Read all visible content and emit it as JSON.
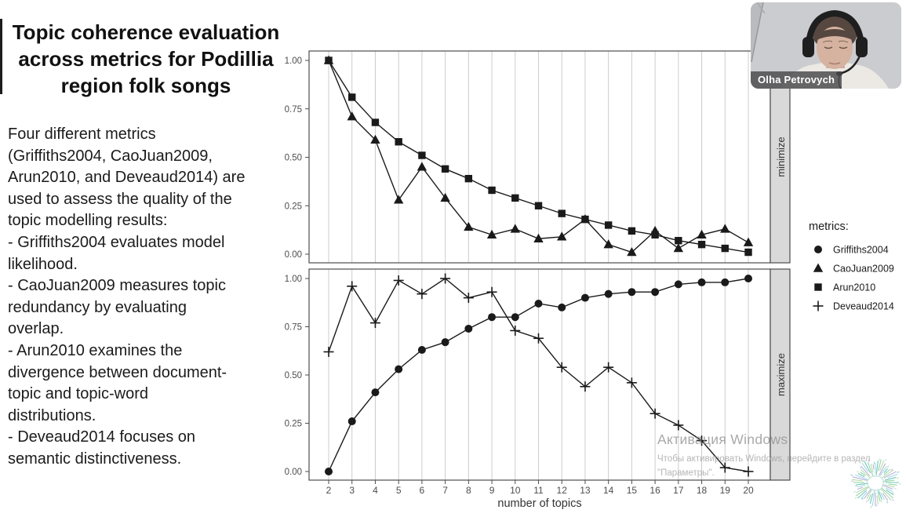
{
  "slide": {
    "title": "Topic coherence evaluation\nacross metrics for Podillia\nregion folk songs",
    "body": "Four different metrics\n(Griffiths2004, CaoJuan2009,\nArun2010, and Deveaud2014) are\nused to assess the quality of the\ntopic modelling results:\n- Griffiths2004 evaluates model\nlikelihood.\n- CaoJuan2009 measures topic\nredundancy by evaluating\noverlap.\n- Arun2010 examines the\ndivergence between document-\ntopic and topic-word\ndistributions.\n- Deveaud2014 focuses on\nsemantic distinctiveness."
  },
  "webcam": {
    "participant_name": "Olha Petrovych"
  },
  "watermark": {
    "line1": "Активация Windows",
    "line2": "Чтобы активировать Windows, перейдите в раздел",
    "line3": "\"Параметры\"."
  },
  "chart_data": {
    "type": "line",
    "x_label": "number of topics",
    "x": [
      2,
      3,
      4,
      5,
      6,
      7,
      8,
      9,
      10,
      11,
      12,
      13,
      14,
      15,
      16,
      17,
      18,
      19,
      20
    ],
    "ylim": [
      0,
      1
    ],
    "yticks": [
      1,
      0.75,
      0.5,
      0.25,
      0
    ],
    "ytick_labels": [
      "1.00",
      "0.75",
      "0.50",
      "0.25",
      "0.00"
    ],
    "grid": "vertical-only",
    "legend": {
      "title": "metrics:",
      "position": "right",
      "items": [
        {
          "label": "Griffiths2004",
          "marker": "circle"
        },
        {
          "label": "CaoJuan2009",
          "marker": "triangle"
        },
        {
          "label": "Arun2010",
          "marker": "square"
        },
        {
          "label": "Deveaud2014",
          "marker": "plus"
        }
      ]
    },
    "panels": [
      {
        "label": "minimize",
        "series": [
          {
            "name": "CaoJuan2009",
            "marker": "triangle",
            "values": [
              1.0,
              0.71,
              0.59,
              0.28,
              0.45,
              0.29,
              0.14,
              0.1,
              0.13,
              0.08,
              0.09,
              0.18,
              0.05,
              0.01,
              0.12,
              0.03,
              0.1,
              0.13,
              0.06
            ]
          },
          {
            "name": "Arun2010",
            "marker": "square",
            "values": [
              1.0,
              0.81,
              0.68,
              0.58,
              0.51,
              0.44,
              0.39,
              0.33,
              0.29,
              0.25,
              0.21,
              0.18,
              0.15,
              0.12,
              0.1,
              0.07,
              0.05,
              0.03,
              0.01
            ]
          }
        ]
      },
      {
        "label": "maximize",
        "series": [
          {
            "name": "Griffiths2004",
            "marker": "circle",
            "values": [
              0.0,
              0.26,
              0.41,
              0.53,
              0.63,
              0.67,
              0.74,
              0.8,
              0.8,
              0.87,
              0.85,
              0.9,
              0.92,
              0.93,
              0.93,
              0.97,
              0.98,
              0.98,
              1.0
            ]
          },
          {
            "name": "Deveaud2014",
            "marker": "plus",
            "values": [
              0.62,
              0.96,
              0.77,
              0.99,
              0.92,
              1.0,
              0.9,
              0.93,
              0.73,
              0.69,
              0.54,
              0.44,
              0.54,
              0.46,
              0.3,
              0.24,
              0.16,
              0.02,
              0.0
            ]
          }
        ]
      }
    ]
  },
  "colors": {
    "line": "#1a1a1a",
    "grid": "#cccccc",
    "panel_border": "#4d4d4d",
    "strip_bg": "#d9d9d9",
    "strip_text": "#333333",
    "tick_text": "#4d4d4d",
    "axis_title": "#333333",
    "legend_text": "#1a1a1a",
    "logo_palette": [
      "#5fbfb5",
      "#8ecf9b",
      "#aed9a0",
      "#b3a6d9",
      "#9fd4e0"
    ]
  }
}
